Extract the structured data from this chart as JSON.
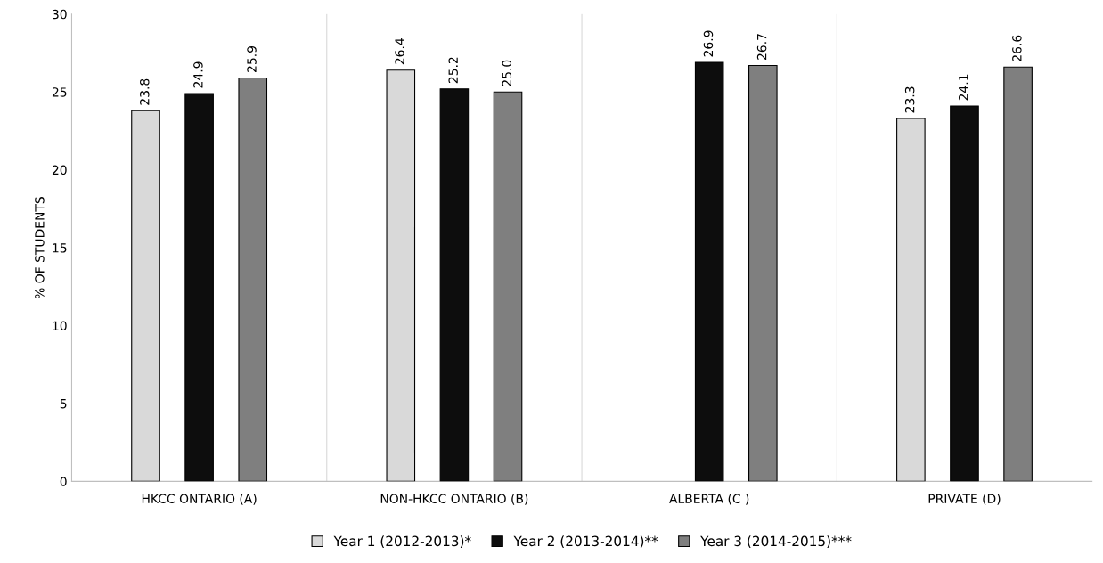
{
  "chart_data": {
    "type": "bar",
    "ylabel": "% OF STUDENTS",
    "categories": [
      "HKCC ONTARIO (A)",
      "NON-HKCC ONTARIO (B)",
      "ALBERTA (C )",
      "PRIVATE (D)"
    ],
    "series": [
      {
        "name": "Year 1 (2012-2013)*",
        "color": "#d9d9d9",
        "values": [
          23.8,
          26.4,
          null,
          23.3
        ],
        "value_labels": [
          "23.8",
          "26.4",
          null,
          "23.3"
        ]
      },
      {
        "name": "Year 2 (2013-2014)**",
        "color": "#0d0d0d",
        "values": [
          24.9,
          25.2,
          26.9,
          24.1
        ],
        "value_labels": [
          "24.9",
          "25.2",
          "26.9",
          "24.1"
        ]
      },
      {
        "name": "Year 3 (2014-2015)***",
        "color": "#7f7f7f",
        "values": [
          25.9,
          25.0,
          26.7,
          26.6
        ],
        "value_labels": [
          "25.9",
          "25.0",
          "26.7",
          "26.6"
        ]
      }
    ],
    "ylim": [
      0,
      30
    ],
    "yticks": [
      0,
      5,
      10,
      15,
      20,
      25,
      30
    ],
    "grid": "x",
    "legend": "bottom"
  }
}
